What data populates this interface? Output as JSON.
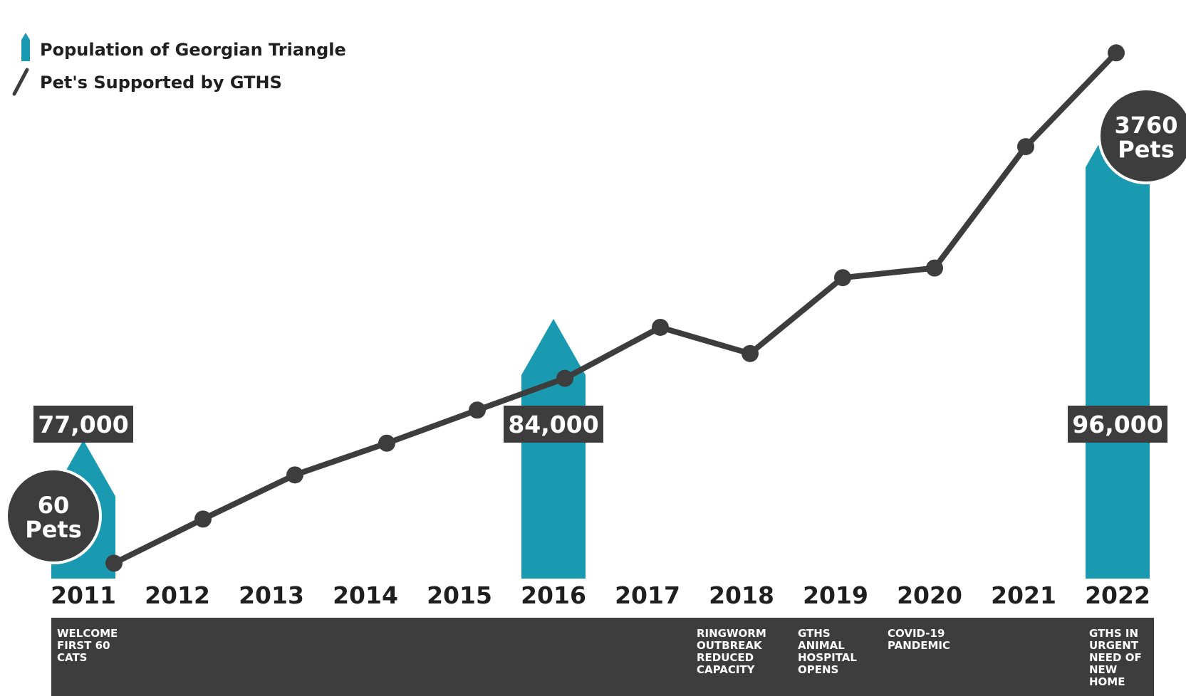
{
  "chart_data": {
    "type": "bar",
    "categories": [
      "2011",
      "2012",
      "2013",
      "2014",
      "2015",
      "2016",
      "2017",
      "2018",
      "2019",
      "2020",
      "2021",
      "2022"
    ],
    "series": [
      {
        "name": "Population of Georgian Triangle",
        "type": "bar",
        "color": "#1A9AB0",
        "points": [
          {
            "x": "2011",
            "y": 77000,
            "label": "77,000"
          },
          {
            "x": "2016",
            "y": 84000,
            "label": "84,000"
          },
          {
            "x": "2022",
            "y": 96000,
            "label": "96,000"
          }
        ]
      },
      {
        "name": "Pet's Supported by GTHS",
        "type": "line",
        "color": "#3d3d3d",
        "values": [
          60,
          380,
          700,
          930,
          1170,
          1400,
          1770,
          1580,
          2130,
          2200,
          3080,
          3760
        ]
      }
    ],
    "pet_labels": [
      {
        "x": "2011",
        "line1": "60",
        "line2": "Pets"
      },
      {
        "x": "2022",
        "line1": "3760",
        "line2": "Pets"
      }
    ],
    "annotations": [
      {
        "x": "2011",
        "lines": [
          "WELCOME",
          "FIRST 60",
          "CATS"
        ]
      },
      {
        "x": "2018",
        "lines": [
          "RINGWORM",
          "OUTBREAK",
          "REDUCED",
          "CAPACITY"
        ]
      },
      {
        "x": "2019",
        "lines": [
          "GTHS",
          "ANIMAL",
          "HOSPITAL",
          "OPENS"
        ]
      },
      {
        "x": "2020",
        "lines": [
          "COVID-19",
          "PANDEMIC"
        ]
      },
      {
        "x": "2022",
        "lines": [
          "GTHS IN",
          "URGENT",
          "NEED OF",
          "NEW",
          "HOME"
        ]
      }
    ],
    "legend": {
      "position": "top-left",
      "bar_label": "Population of Georgian Triangle",
      "line_label": "Pet's Supported by GTHS"
    },
    "colors": {
      "bar": "#1A9AB0",
      "line": "#3d3d3d",
      "dark": "#3d3d3d"
    },
    "grid": false
  }
}
